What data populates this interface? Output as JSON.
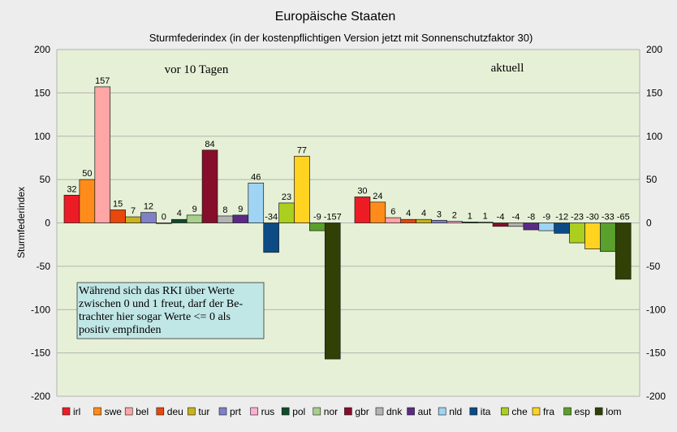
{
  "chart_data": {
    "type": "bar",
    "title": "Europäische Staaten",
    "subtitle": "Sturmfederindex (in der kostenpflichtigen Version jetzt mit Sonnenschutzfaktor 30)",
    "ylabel": "Sturmfederindex",
    "ylim": [
      -200,
      200
    ],
    "yticks": [
      200,
      150,
      100,
      50,
      0,
      -50,
      -100,
      -150,
      -200
    ],
    "grid": "horizontal",
    "legend_position": "bottom",
    "groups": [
      "vor 10 Tagen",
      "aktuell"
    ],
    "series": [
      {
        "name": "irl",
        "color": "#ed1c24",
        "values": [
          32,
          30
        ]
      },
      {
        "name": "swe",
        "color": "#ff8c1a",
        "values": [
          50,
          24
        ]
      },
      {
        "name": "bel",
        "color": "#ffa5a5",
        "values": [
          157,
          6
        ]
      },
      {
        "name": "deu",
        "color": "#e8480c",
        "values": [
          15,
          4
        ]
      },
      {
        "name": "tur",
        "color": "#c9b31c",
        "values": [
          7,
          4
        ]
      },
      {
        "name": "prt",
        "color": "#8080c8",
        "values": [
          12,
          3
        ]
      },
      {
        "name": "rus",
        "color": "#ffafd2",
        "values": [
          0,
          2
        ]
      },
      {
        "name": "pol",
        "color": "#0f4d2a",
        "values": [
          4,
          1
        ]
      },
      {
        "name": "nor",
        "color": "#a8d08d",
        "values": [
          9,
          1
        ]
      },
      {
        "name": "gbr",
        "color": "#870e2b",
        "values": [
          84,
          -4
        ]
      },
      {
        "name": "dnk",
        "color": "#b3b3b3",
        "values": [
          8,
          -4
        ]
      },
      {
        "name": "aut",
        "color": "#5b2a86",
        "values": [
          9,
          -8
        ]
      },
      {
        "name": "nld",
        "color": "#9fd4f4",
        "values": [
          46,
          -9
        ]
      },
      {
        "name": "ita",
        "color": "#0d4b85",
        "values": [
          -34,
          -12
        ]
      },
      {
        "name": "che",
        "color": "#aacf1f",
        "values": [
          23,
          -23
        ]
      },
      {
        "name": "fra",
        "color": "#ffd320",
        "values": [
          77,
          -30
        ]
      },
      {
        "name": "esp",
        "color": "#5aa02c",
        "values": [
          -9,
          -33
        ]
      },
      {
        "name": "lom",
        "color": "#314004",
        "values": [
          -157,
          -65
        ]
      }
    ],
    "annotation": "Während sich das RKI über Werte zwischen 0 und 1 freut, darf der Betrachter hier sogar Werte <= 0 als positiv empfinden"
  },
  "colors": {
    "background": "#ededed",
    "plot_area": "#e6f0d6",
    "grid": "#b3b3b3",
    "note_fill": "#c1e6e6"
  },
  "annotation_lines": [
    "Während sich das RKI über Werte",
    "zwischen 0 und 1 freut, darf der Be-",
    "trachter hier sogar Werte <= 0 als",
    "positiv empfinden"
  ]
}
